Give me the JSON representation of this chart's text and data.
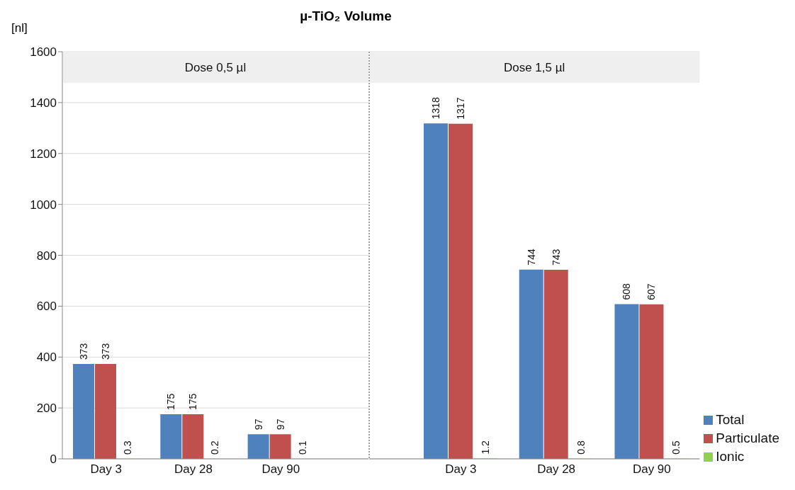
{
  "chart_data": [
    {
      "type": "bar",
      "title": "µ-TiO₂  Volume",
      "subtitle": "Dose 0,5 µl",
      "ylabel": "[nl]",
      "categories": [
        "Day 3",
        "Day 28",
        "Day 90"
      ],
      "series": [
        {
          "color": "#4f81bd",
          "values": [
            373,
            175,
            97
          ]
        },
        {
          "color": "#c0504d",
          "values": [
            373,
            175,
            97
          ]
        },
        {
          "color": "#92d050",
          "values": [
            0.3,
            0.2,
            0.1
          ]
        }
      ],
      "ylim": [
        0,
        1600
      ],
      "yticks": [
        0,
        200,
        400,
        600,
        800,
        1000,
        1200,
        1400,
        1600
      ],
      "grid": "y",
      "data_labels": true
    },
    {
      "type": "bar",
      "subtitle": "Dose 1,5 µl",
      "categories": [
        "Day 3",
        "Day 28",
        "Day 90"
      ],
      "series": [
        {
          "name": "Total",
          "color": "#4f81bd",
          "values": [
            1318,
            744,
            608
          ]
        },
        {
          "name": "Particulate",
          "color": "#c0504d",
          "values": [
            1317,
            743,
            607
          ]
        },
        {
          "name": "Ionic",
          "color": "#92d050",
          "values": [
            1.2,
            0.8,
            0.5
          ]
        }
      ],
      "ylim": [
        0,
        1600
      ],
      "yticks": [
        0,
        200,
        400,
        600,
        800,
        1000,
        1200,
        1400,
        1600
      ],
      "tick_labels": "x",
      "grid": "y",
      "legend": "right",
      "data_labels": true
    }
  ]
}
